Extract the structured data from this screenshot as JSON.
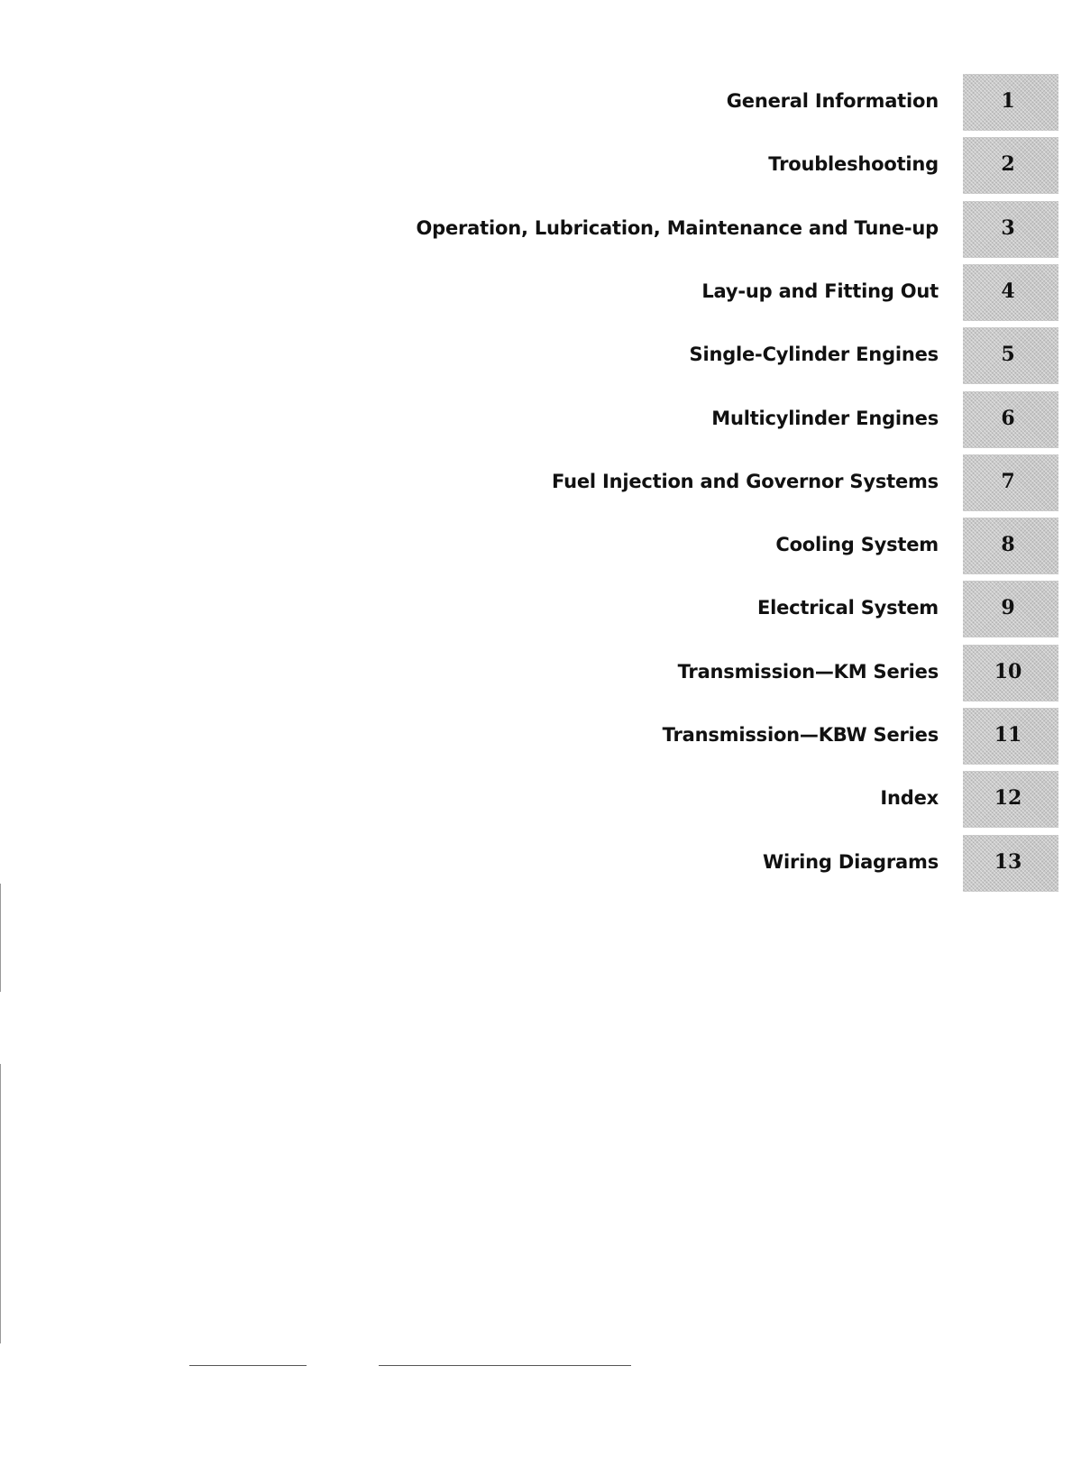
{
  "sections": [
    {
      "label": "General Information",
      "tab": "1"
    },
    {
      "label": "Troubleshooting",
      "tab": "2"
    },
    {
      "label": "Operation, Lubrication, Maintenance and Tune-up",
      "tab": "3"
    },
    {
      "label": "Lay-up and Fitting Out",
      "tab": "4"
    },
    {
      "label": "Single-Cylinder Engines",
      "tab": "5"
    },
    {
      "label": "Multicylinder Engines",
      "tab": "6"
    },
    {
      "label": "Fuel Injection and Governor Systems",
      "tab": "7"
    },
    {
      "label": "Cooling System",
      "tab": "8"
    },
    {
      "label": "Electrical System",
      "tab": "9"
    },
    {
      "label": "Transmission—KM Series",
      "tab": "10"
    },
    {
      "label": "Transmission—KBW Series",
      "tab": "11"
    },
    {
      "label": "Index",
      "tab": "12"
    },
    {
      "label": "Wiring Diagrams",
      "tab": "13"
    }
  ],
  "colors": {
    "tab_gray": "#c9c9c9",
    "text": "#111111"
  }
}
